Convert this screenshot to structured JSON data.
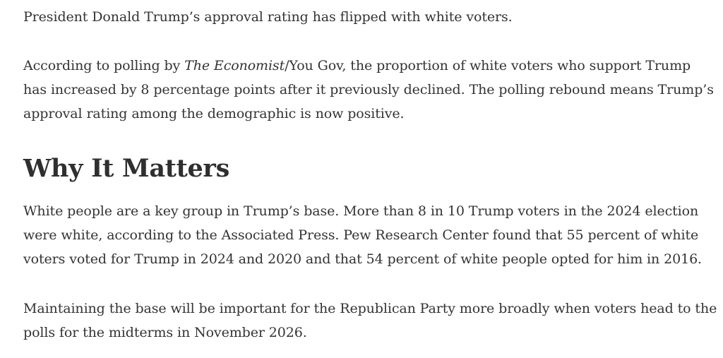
{
  "article": {
    "p1": {
      "line1": "President Donald Trump’s approval rating has flipped with white voters."
    },
    "p2": {
      "line1_pre": "According to polling by ",
      "line1_em": "The Economist",
      "line1_post": "/You Gov, the proportion of white voters who support Trump",
      "line2": "has increased by 8 percentage points after it previously declined. The polling rebound means Trump’s",
      "line3": "approval rating among the demographic is now positive."
    },
    "heading": "Why It Matters",
    "p3": {
      "line1": "White people are a key group in Trump’s base. More than 8 in 10 Trump voters in the 2024 election",
      "line2": "were white, according to the Associated Press. Pew Research Center found that 55 percent of white",
      "line3": "voters voted for Trump in 2024 and 2020 and that 54 percent of white people opted for him in 2016."
    },
    "p4": {
      "line1": "Maintaining the base will be important for the Republican Party more broadly when voters head to the",
      "line2": "polls for the midterms in November 2026."
    }
  }
}
